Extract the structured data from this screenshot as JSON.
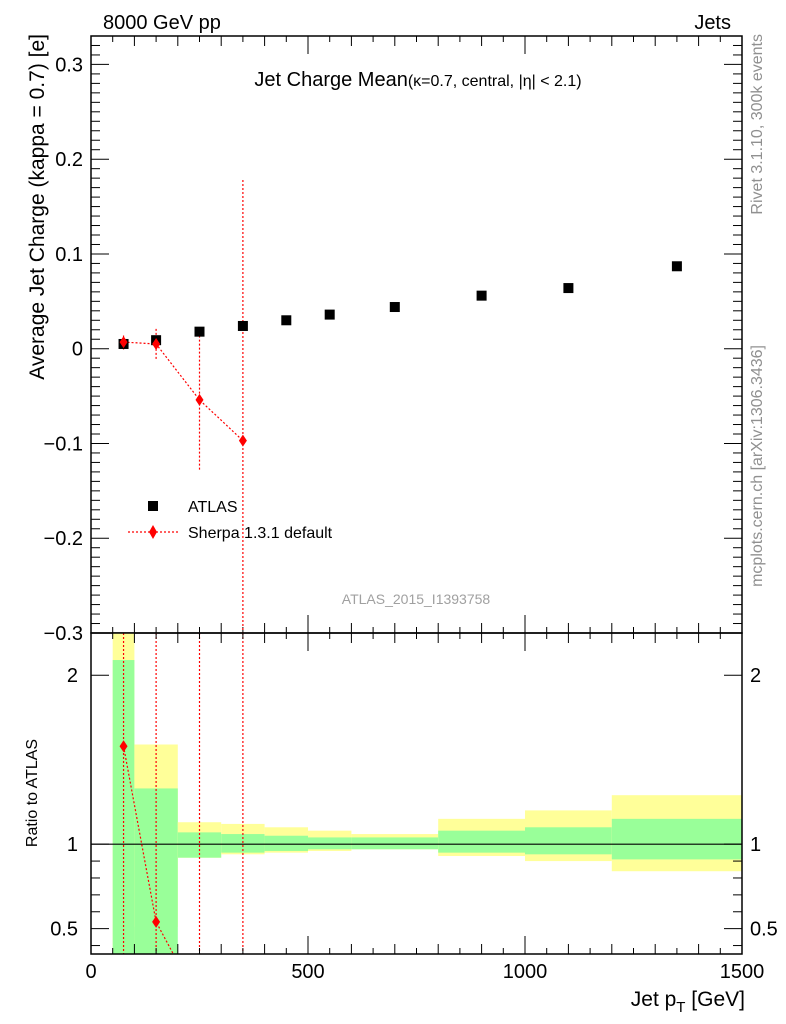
{
  "header": {
    "left": "8000 GeV pp",
    "right": "Jets",
    "side_top": "Rivet 3.1.10,  300k events",
    "side_bottom": "mcplots.cern.ch [arXiv:1306.3436]",
    "watermark": "ATLAS_2015_I1393758"
  },
  "chart_data": [
    {
      "type": "scatter",
      "title": "Jet Charge Mean",
      "subtitle": "(κ=0.7, central, |η| < 2.1)",
      "ylabel": "Average Jet Charge (kappa = 0.7) [e]",
      "xlim": [
        0,
        1500
      ],
      "ylim": [
        -0.3,
        0.33
      ],
      "yticks": [
        0.3,
        0.2,
        0.1,
        0,
        -0.1,
        -0.2,
        -0.3
      ],
      "ytick_labels": [
        "0.3",
        "0.2",
        "0.1",
        "0",
        "−0.1",
        "−0.2",
        "−0.3"
      ],
      "legend_position": "lower-left",
      "series": [
        {
          "name": "ATLAS",
          "color": "#000000",
          "marker": "square",
          "x": [
            75,
            150,
            250,
            350,
            450,
            550,
            700,
            900,
            1100,
            1350
          ],
          "y": [
            0.005,
            0.009,
            0.018,
            0.024,
            0.03,
            0.036,
            0.044,
            0.056,
            0.064,
            0.087
          ]
        },
        {
          "name": "Sherpa 1.3.1 default",
          "color": "#ff0000",
          "marker": "diamond",
          "line": "dotted",
          "x": [
            75,
            150,
            250,
            350
          ],
          "y": [
            0.007,
            0.005,
            -0.054,
            -0.097
          ],
          "yerr_low": [
            0.008,
            0.016,
            0.075,
            0.3
          ],
          "yerr_high": [
            0.007,
            0.016,
            0.072,
            0.275
          ]
        }
      ]
    },
    {
      "type": "scatter",
      "ylabel": "Ratio to ATLAS",
      "xlabel": "Jet p_T [GeV]",
      "xlim": [
        0,
        1500
      ],
      "ylim": [
        0.35,
        2.25
      ],
      "xticks": [
        0,
        500,
        1000,
        1500
      ],
      "xtick_labels": [
        "0",
        "500",
        "1000",
        "1500"
      ],
      "yticks": [
        0.5,
        1,
        2
      ],
      "ytick_labels": [
        "0.5",
        "1",
        "2"
      ],
      "bands": {
        "edges": [
          50,
          100,
          200,
          300,
          400,
          500,
          600,
          800,
          1000,
          1200,
          1500
        ],
        "green_low": [
          0.35,
          0.35,
          0.92,
          0.95,
          0.96,
          0.97,
          0.97,
          0.95,
          0.94,
          0.91
        ],
        "green_high": [
          2.09,
          1.33,
          1.07,
          1.06,
          1.05,
          1.04,
          1.04,
          1.08,
          1.1,
          1.15
        ],
        "yellow_low": [
          0.35,
          0.51,
          0.92,
          0.94,
          0.95,
          0.96,
          0.97,
          0.93,
          0.9,
          0.84
        ],
        "yellow_high": [
          2.25,
          1.59,
          1.13,
          1.12,
          1.1,
          1.08,
          1.06,
          1.15,
          1.2,
          1.29
        ]
      },
      "series": [
        {
          "name": "Sherpa 1.3.1 default",
          "color": "#ff0000",
          "marker": "diamond",
          "line": "dotted",
          "x": [
            75,
            150
          ],
          "y": [
            1.58,
            0.54
          ]
        }
      ]
    }
  ]
}
